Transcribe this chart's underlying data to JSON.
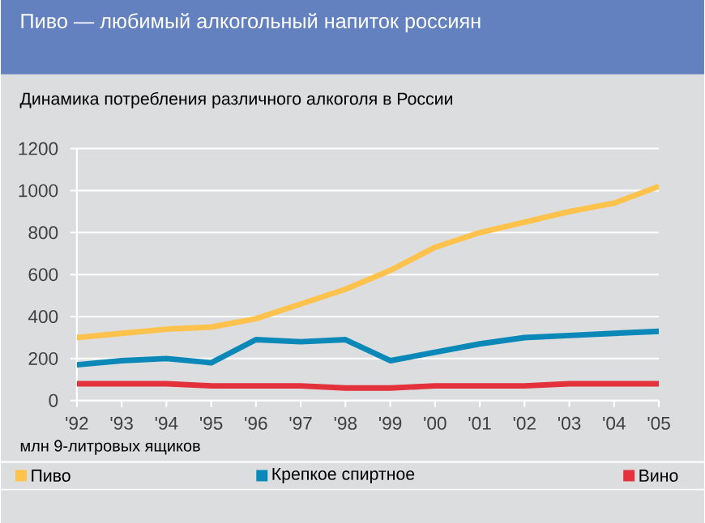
{
  "chart_data": {
    "type": "line",
    "title": "Пиво — любимый алкогольный напиток россиян",
    "subtitle": "Динамика потребления различного алкоголя в России",
    "annotations": [
      "млн 9-литровых ящиков"
    ],
    "categories": [
      "'92",
      "'93",
      "'94",
      "'95",
      "'96",
      "'97",
      "'98",
      "'99",
      "'00",
      "'01",
      "'02",
      "'03",
      "'04",
      "'05"
    ],
    "series": [
      {
        "name": "Пиво",
        "color": "#fec24d",
        "values": [
          300,
          320,
          340,
          350,
          390,
          460,
          530,
          620,
          730,
          800,
          850,
          900,
          940,
          1020
        ]
      },
      {
        "name": "Крепкое спиртное",
        "color": "#0a88b8",
        "values": [
          170,
          190,
          200,
          180,
          290,
          280,
          290,
          190,
          230,
          270,
          300,
          310,
          320,
          330
        ]
      },
      {
        "name": "Вино",
        "color": "#e3323c",
        "values": [
          80,
          80,
          80,
          70,
          70,
          70,
          60,
          60,
          70,
          70,
          70,
          80,
          80,
          80
        ]
      }
    ],
    "ylim": [
      0,
      1200
    ],
    "yticks": [
      0,
      200,
      400,
      600,
      800,
      1000,
      1200
    ],
    "grid": "y",
    "legend": "bottom",
    "marker": "none",
    "line_style": "solid"
  }
}
